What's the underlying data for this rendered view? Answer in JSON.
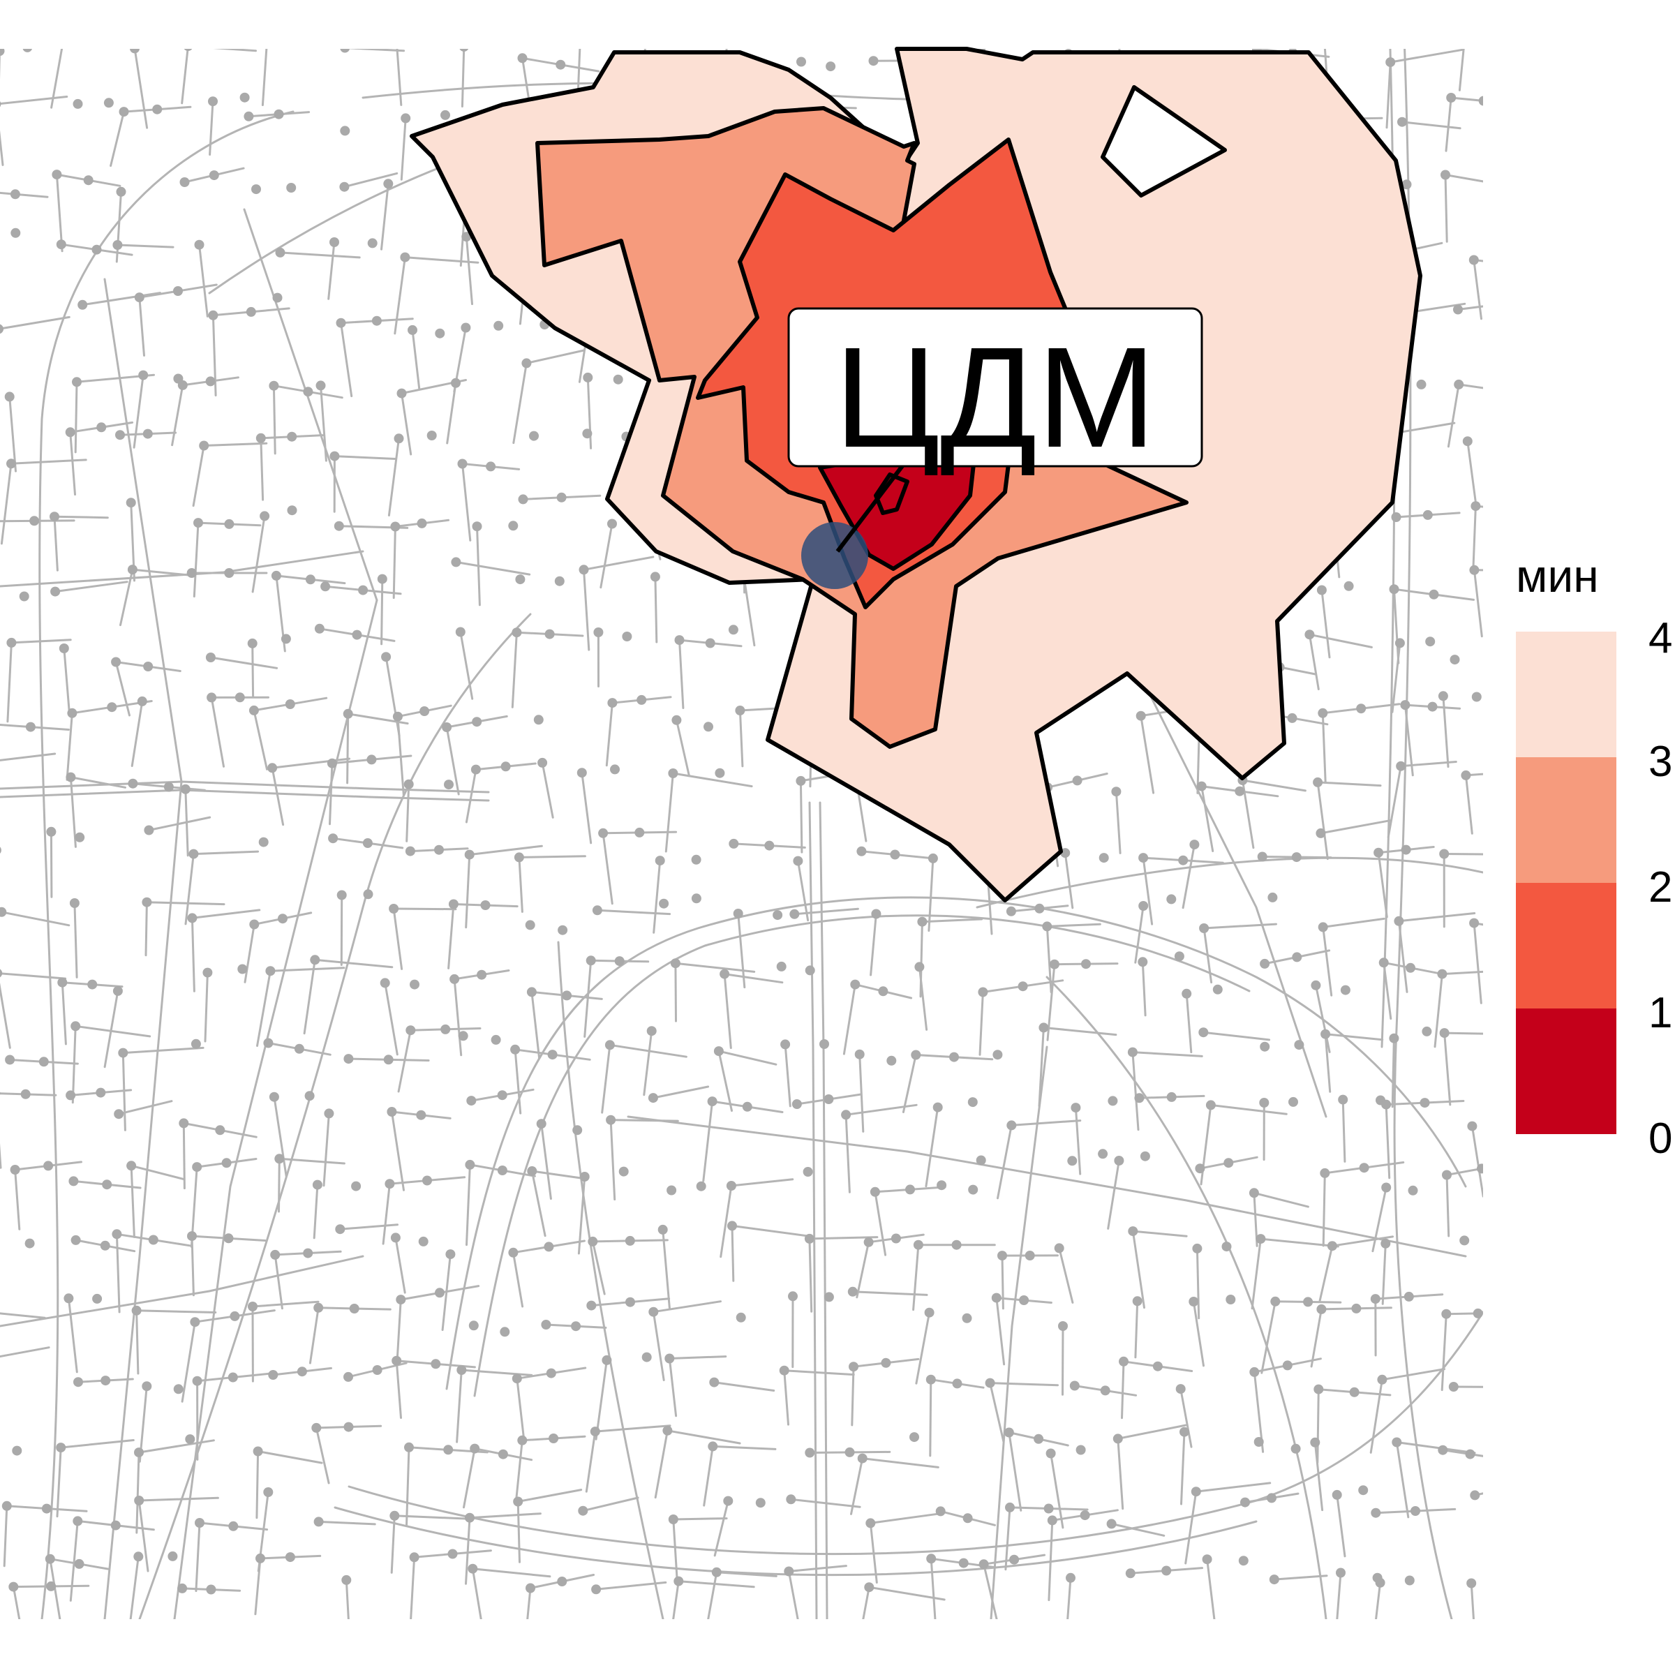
{
  "map": {
    "label": "ЦДМ",
    "legend": {
      "title": "мин",
      "bands": [
        {
          "value": "4",
          "color": "#FCE0D4"
        },
        {
          "value": "3",
          "color": "#F69B7D"
        },
        {
          "value": "2",
          "color": "#F35840"
        },
        {
          "value": "1",
          "color": "#C4001A"
        },
        {
          "value": "0",
          "color": ""
        }
      ]
    },
    "isochrone_colors": {
      "band_3_4": "#FCE0D4",
      "band_2_3": "#F69B7D",
      "band_1_2": "#F35840",
      "band_0_1": "#C4001A"
    },
    "road_color": "#B4B4B4",
    "node_color": "#A9A9A9",
    "point_color": "#2E4E7A"
  }
}
